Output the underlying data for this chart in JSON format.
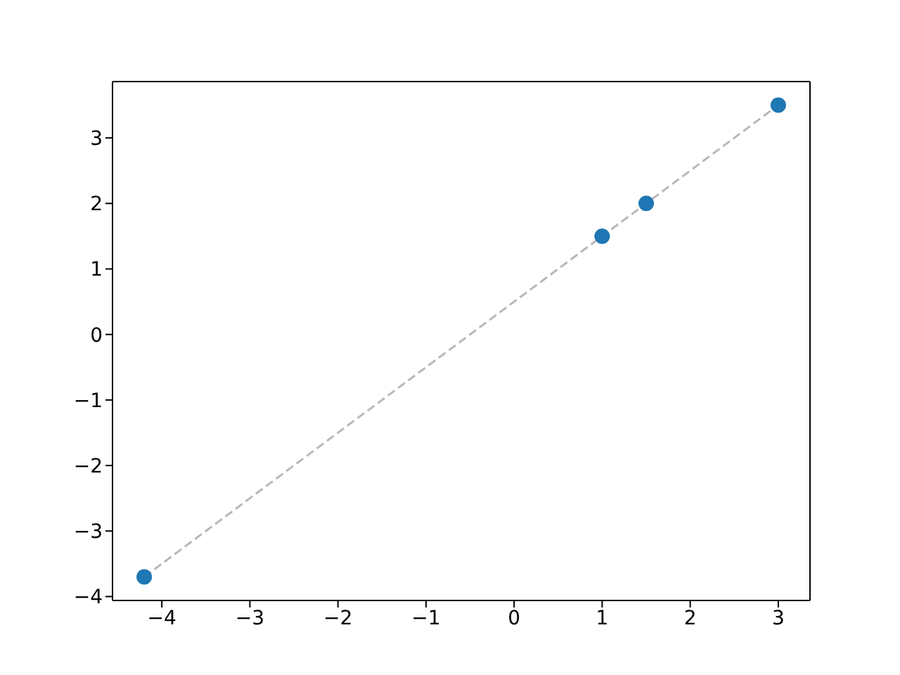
{
  "chart_data": {
    "type": "scatter",
    "x": [
      -4.2,
      1,
      1.5,
      3
    ],
    "series": [
      {
        "type": "line",
        "x": [
          -4.2,
          3
        ],
        "values": [
          -3.7,
          3.5
        ],
        "color": "#b8b8b8",
        "line_style": "dashed",
        "marker": "none"
      },
      {
        "values": [
          -3.7,
          1.5,
          2,
          3.5
        ],
        "color": "#1f77b4",
        "marker": "circle"
      }
    ],
    "xlim": [
      -4.56,
      3.36
    ],
    "ylim": [
      -4.06,
      3.86
    ],
    "xticks": [
      {
        "value": -4,
        "label": "−4"
      },
      {
        "value": -3,
        "label": "−3"
      },
      {
        "value": -2,
        "label": "−2"
      },
      {
        "value": -1,
        "label": "−1"
      },
      0,
      1,
      2,
      3
    ],
    "yticks": [
      {
        "value": -4,
        "label": "−4"
      },
      {
        "value": -3,
        "label": "−3"
      },
      {
        "value": -2,
        "label": "−2"
      },
      {
        "value": -1,
        "label": "−1"
      },
      0,
      1,
      2,
      3
    ]
  }
}
